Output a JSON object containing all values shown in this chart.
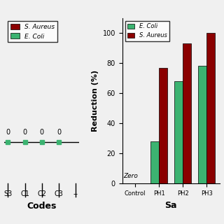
{
  "left_plot": {
    "categories": [
      "S3",
      "C1",
      "C2",
      "C3",
      "--"
    ],
    "s_aureus_values": [
      0,
      0,
      0,
      0
    ],
    "e_coli_values": [
      0,
      0,
      0,
      0
    ],
    "xlabel": "Codes",
    "ylim": [
      -0.5,
      1.5
    ],
    "legend_s_aureus": "S. Aureus",
    "legend_e_coli": "E. Coli"
  },
  "right_plot": {
    "categories": [
      "Control",
      "PH1",
      "PH2",
      "PH3"
    ],
    "e_coli_values": [
      0,
      28,
      68,
      78
    ],
    "s_aureus_values": [
      0,
      77,
      93,
      100
    ],
    "ylabel": "Reduction (%)",
    "xlabel": "Sa",
    "ylim": [
      0,
      110
    ],
    "yticks": [
      0,
      20,
      40,
      60,
      80,
      100
    ],
    "zero_label": "Zero",
    "legend_e_coli": "E. Coli",
    "legend_s_aureus": "S. Aureus"
  },
  "colors": {
    "s_aureus": "#8B0000",
    "e_coli": "#3CB371"
  },
  "background_color": "#f0f0f0"
}
